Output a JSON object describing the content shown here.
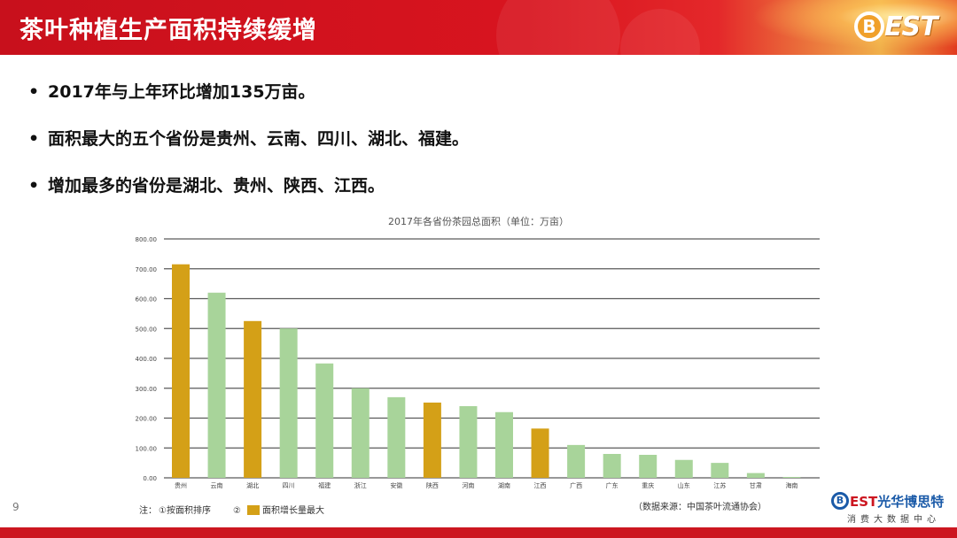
{
  "header": {
    "title": "茶叶种植生产面积持续缓增",
    "logo_b": "B",
    "logo_est": "EST"
  },
  "bullets": [
    "2017年与上年环比增加135万亩。",
    "面积最大的五个省份是贵州、云南、四川、湖北、福建。",
    "增加最多的省份是湖北、贵州、陕西、江西。"
  ],
  "bullet_symbol": "•",
  "page_number": "9",
  "footer_logo": {
    "b": "B",
    "est": "EST",
    "brand": "光华博思特",
    "tagline": "消费大数据中心"
  },
  "colors": {
    "header_red": "#cc1620",
    "bar_green": "#a8d49a",
    "bar_gold": "#d4a017",
    "grid": "#5a5a5a"
  },
  "chart_data": {
    "type": "bar",
    "title": "2017年各省份茶园总面积（单位：万亩）",
    "categories": [
      "贵州",
      "云南",
      "湖北",
      "四川",
      "福建",
      "浙江",
      "安徽",
      "陕西",
      "河南",
      "湖南",
      "江西",
      "广西",
      "广东",
      "重庆",
      "山东",
      "江苏",
      "甘肃",
      "海南"
    ],
    "values": [
      715,
      620,
      525,
      500,
      383,
      300,
      270,
      252,
      240,
      220,
      165,
      110,
      80,
      77,
      60,
      50,
      16,
      3
    ],
    "highlight": [
      true,
      false,
      true,
      false,
      false,
      false,
      false,
      true,
      false,
      false,
      true,
      false,
      false,
      false,
      false,
      false,
      false,
      false
    ],
    "ylim": [
      0,
      800
    ],
    "yticks": [
      "0.00",
      "100.00",
      "200.00",
      "300.00",
      "400.00",
      "500.00",
      "600.00",
      "700.00",
      "800.00"
    ],
    "grid": true,
    "note_prefix": "注：",
    "note_1": "①按面积排序",
    "note_2_mark": "②",
    "note_2": "面积增长量最大",
    "source": "（数据来源：中国茶叶流通协会）"
  }
}
